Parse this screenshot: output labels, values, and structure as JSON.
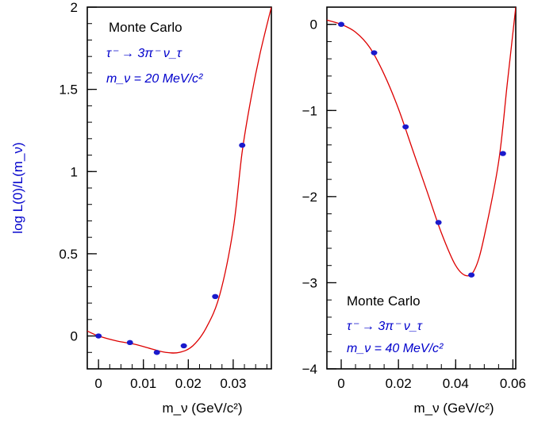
{
  "chart_data": [
    {
      "type": "scatter",
      "title": "",
      "xlabel": "m_ν (GeV/c²)",
      "ylabel": "log L(0)/L(m_ν)",
      "xlim": [
        -0.0025,
        0.0385
      ],
      "ylim": [
        -0.2,
        2.0
      ],
      "x_ticks": [
        0,
        0.01,
        0.02,
        0.03
      ],
      "x_tick_labels": [
        "0",
        "0.01",
        "0.02",
        "0.03"
      ],
      "y_ticks": [
        0,
        0.5,
        1,
        1.5,
        2
      ],
      "y_tick_labels": [
        "0",
        "0.5",
        "1",
        "1.5",
        "2"
      ],
      "annotations": [
        "Monte Carlo",
        "τ⁻ → 3π⁻ ν_τ",
        "m_ν = 20 MeV/c²"
      ],
      "series": [
        {
          "points_x": [
            0.0,
            0.007,
            0.013,
            0.019,
            0.026,
            0.032
          ],
          "points_y": [
            0.0,
            -0.04,
            -0.1,
            -0.06,
            0.24,
            1.16
          ],
          "curve_x": [
            -0.0025,
            0.0,
            0.004,
            0.008,
            0.012,
            0.015,
            0.018,
            0.021,
            0.024,
            0.027,
            0.03,
            0.032,
            0.034,
            0.036,
            0.0385
          ],
          "curve_y": [
            0.03,
            0.0,
            -0.03,
            -0.05,
            -0.08,
            -0.1,
            -0.1,
            -0.06,
            0.05,
            0.25,
            0.65,
            1.12,
            1.45,
            1.72,
            2.0
          ],
          "color": "#dd0000",
          "point_color": "#1a1acc"
        }
      ]
    },
    {
      "type": "scatter",
      "title": "",
      "xlabel": "m_ν (GeV/c²)",
      "ylabel": "",
      "xlim": [
        -0.005,
        0.061
      ],
      "ylim": [
        -4,
        0.2
      ],
      "x_ticks": [
        0,
        0.02,
        0.04,
        0.06
      ],
      "x_tick_labels": [
        "0",
        "0.02",
        "0.04",
        "0.06"
      ],
      "y_ticks": [
        0,
        -1,
        -2,
        -3,
        -4
      ],
      "y_tick_labels": [
        "0",
        "−1",
        "−2",
        "−3",
        "−4"
      ],
      "annotations": [
        "Monte Carlo",
        "τ⁻ → 3π⁻ ν_τ",
        "m_ν = 40 MeV/c²"
      ],
      "series": [
        {
          "points_x": [
            0.0,
            0.0115,
            0.0225,
            0.034,
            0.0455,
            0.0565
          ],
          "points_y": [
            0.0,
            -0.33,
            -1.19,
            -2.3,
            -2.91,
            -1.5
          ],
          "curve_x": [
            -0.005,
            0.0,
            0.005,
            0.01,
            0.015,
            0.02,
            0.025,
            0.03,
            0.035,
            0.04,
            0.044,
            0.047,
            0.05,
            0.055,
            0.058,
            0.061
          ],
          "curve_y": [
            0.05,
            0.0,
            -0.09,
            -0.27,
            -0.58,
            -0.98,
            -1.46,
            -1.94,
            -2.42,
            -2.8,
            -2.92,
            -2.82,
            -2.46,
            -1.6,
            -0.7,
            0.2
          ],
          "color": "#dd0000",
          "point_color": "#1a1acc"
        }
      ]
    }
  ]
}
